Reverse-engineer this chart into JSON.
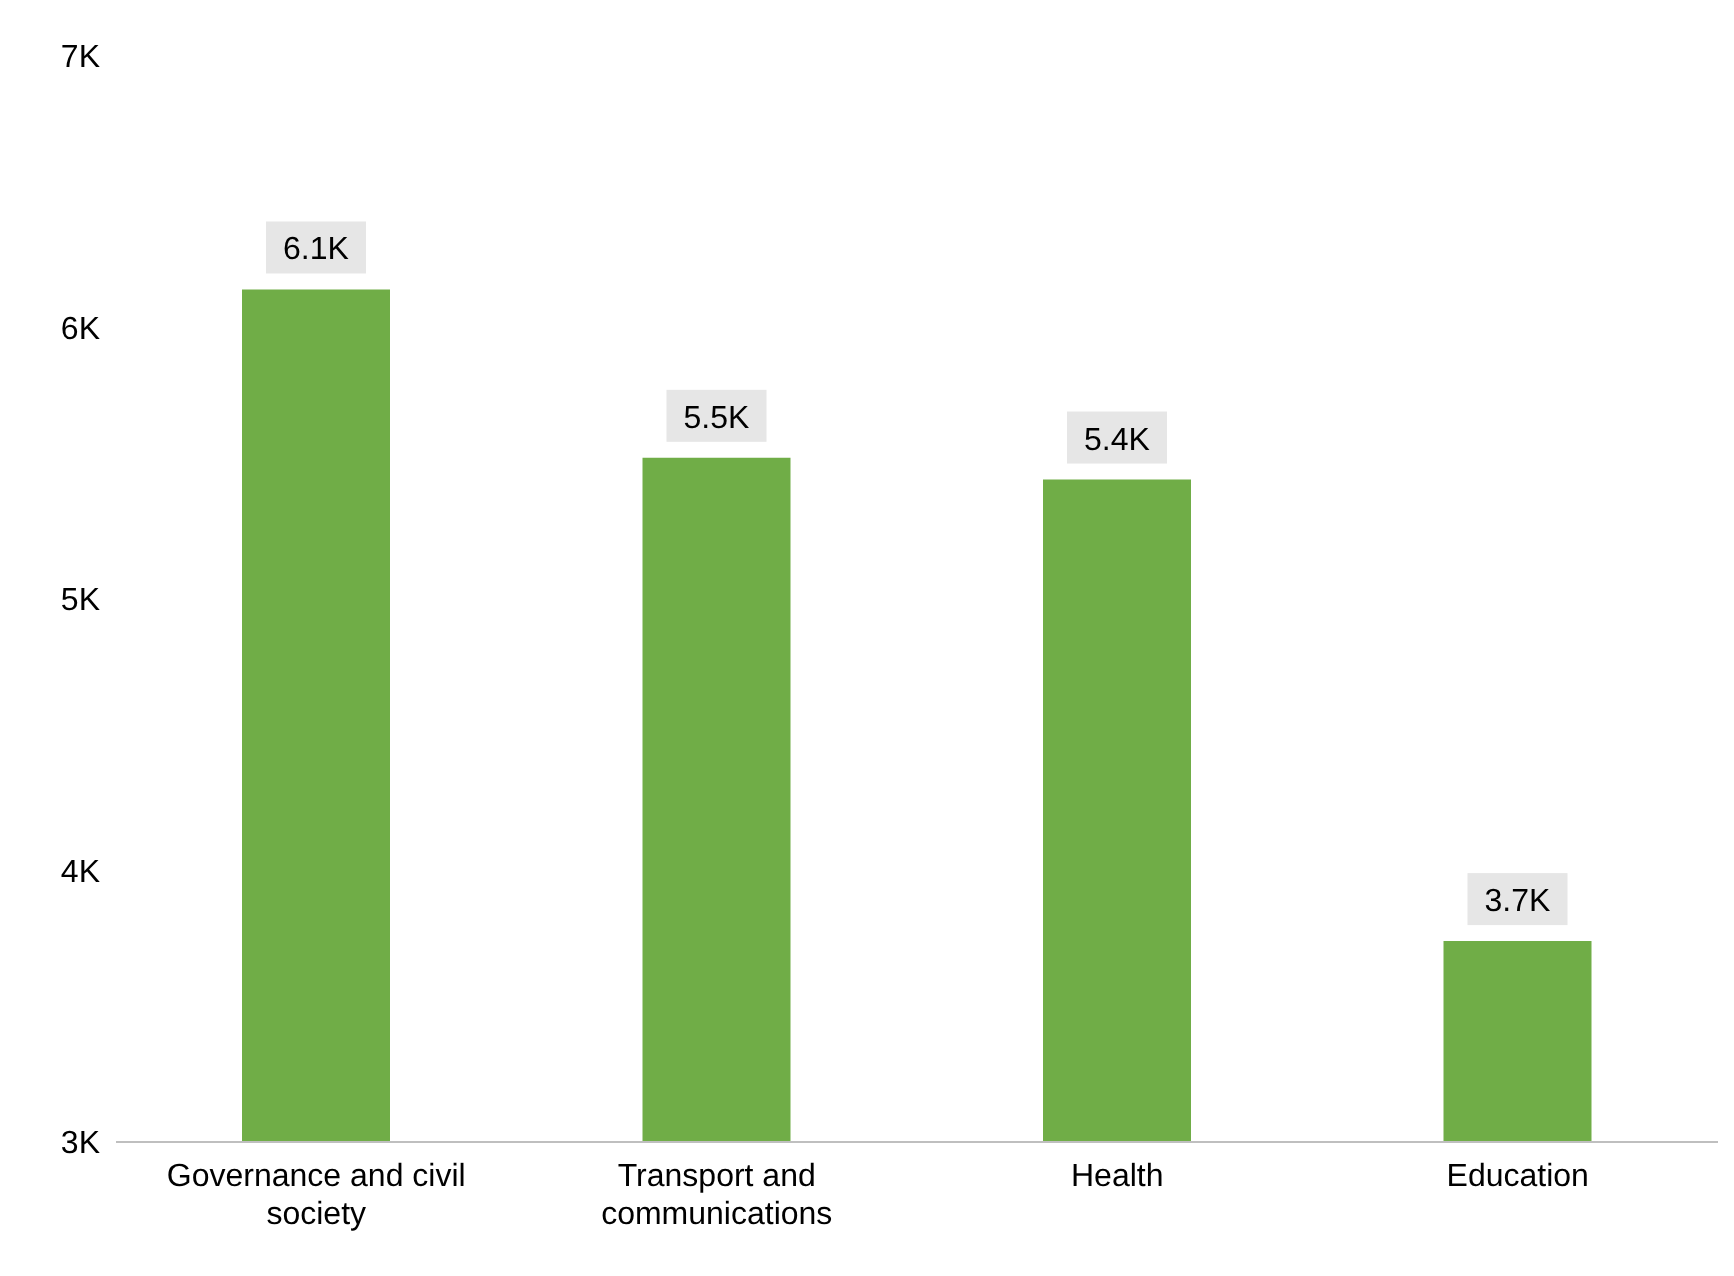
{
  "chart_data": {
    "type": "bar",
    "categories": [
      "Governance and civil society",
      "Transport and communications",
      "Health",
      "Education"
    ],
    "values": [
      6140,
      5520,
      5440,
      3740
    ],
    "color": "#70ad47",
    "value_labels": [
      "6.1K",
      "5.5K",
      "5.4K",
      "3.7K"
    ],
    "ylim": [
      3000,
      7000
    ],
    "yticks": [
      {
        "value": 3000,
        "label": "3K"
      },
      {
        "value": 4000,
        "label": "4K"
      },
      {
        "value": 5000,
        "label": "5K"
      },
      {
        "value": 6000,
        "label": "6K"
      },
      {
        "value": 7000,
        "label": "7K"
      }
    ],
    "grid": false,
    "legend": false
  }
}
